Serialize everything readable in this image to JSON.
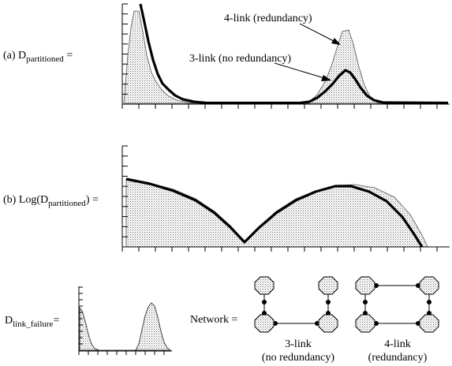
{
  "panel_a": {
    "label_prefix": "(a) D",
    "label_sub": "partitioned",
    "label_suffix": " =",
    "annotation_redundant": "4-link (redundancy)",
    "annotation_nonredundant": "3-link (no redundancy)"
  },
  "panel_b": {
    "label_prefix": "(b) Log(D",
    "label_sub": "partitioned",
    "label_suffix": ") ="
  },
  "panel_c": {
    "label_prefix": "D",
    "label_sub": "link_failure",
    "label_suffix": "="
  },
  "network": {
    "label": "Network =",
    "three_link_line1": "3-link",
    "three_link_line2": "(no redundancy)",
    "four_link_line1": "4-link",
    "four_link_line2": "(redundancy)"
  },
  "colors": {
    "ink": "#000000",
    "fill": "#d9d9d9"
  }
}
